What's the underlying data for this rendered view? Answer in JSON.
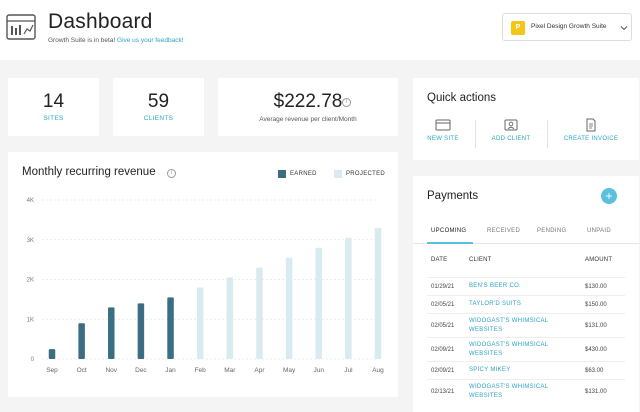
{
  "header": {
    "title": "Dashboard",
    "beta_text": "Growth Suite is in beta!",
    "feedback_link": "Give us your feedback!",
    "site": {
      "logo_letter": "P",
      "name": "Pixel Design Growth Suite"
    }
  },
  "stats": {
    "sites": {
      "value": "14",
      "label": "SITES"
    },
    "clients": {
      "value": "59",
      "label": "CLIENTS"
    },
    "revenue": {
      "value": "$222.78",
      "label": "Average revenue per client/Month"
    }
  },
  "quick_actions": {
    "title": "Quick actions",
    "items": [
      {
        "label": "NEW SITE",
        "icon": "browser-window-icon"
      },
      {
        "label": "ADD CLIENT",
        "icon": "id-card-icon"
      },
      {
        "label": "CREATE INVOICE",
        "icon": "document-icon"
      }
    ]
  },
  "payments": {
    "title": "Payments",
    "add_label": "+",
    "tabs": [
      "UPCOMING",
      "RECEIVED",
      "PENDING",
      "UNPAID"
    ],
    "active_tab": "UPCOMING",
    "columns": [
      "DATE",
      "CLIENT",
      "AMOUNT"
    ],
    "rows": [
      {
        "date": "01/29/21",
        "client": "BEN'S BEER CO.",
        "amount": "$130.00"
      },
      {
        "date": "02/05/21",
        "client": "TAYLOR'D SUITS",
        "amount": "$150.00"
      },
      {
        "date": "02/05/21",
        "client": "WIDOGAST'S WHIMSICAL WEBSITES",
        "amount": "$131.00"
      },
      {
        "date": "02/09/21",
        "client": "WIDOGAST'S WHIMSICAL WEBSITES",
        "amount": "$430.00"
      },
      {
        "date": "02/09/21",
        "client": "SPICY MIKEY",
        "amount": "$63.00"
      },
      {
        "date": "02/13/21",
        "client": "WIDOGAST'S WHIMSICAL WEBSITES",
        "amount": "$131.00"
      }
    ]
  },
  "colors": {
    "accent": "#2ea3c9",
    "earned": "#3b6e82",
    "projected": "#d7ebf0",
    "add_button": "#5bc0de"
  },
  "chart_data": {
    "type": "bar",
    "title": "Monthly recurring revenue",
    "legend": [
      {
        "name": "EARNED"
      },
      {
        "name": "PROJECTED"
      }
    ],
    "categories": [
      "Sep",
      "Oct",
      "Nov",
      "Dec",
      "Jan",
      "Feb",
      "Mar",
      "Apr",
      "May",
      "Jun",
      "Jul",
      "Aug"
    ],
    "series": [
      {
        "name": "EARNED",
        "values": [
          250,
          900,
          1300,
          1400,
          1550,
          null,
          null,
          null,
          null,
          null,
          null,
          null
        ]
      },
      {
        "name": "PROJECTED",
        "values": [
          null,
          null,
          null,
          null,
          null,
          1800,
          2050,
          2300,
          2550,
          2800,
          3050,
          3300
        ]
      }
    ],
    "y_ticks": [
      "0",
      "1K",
      "2K",
      "3K",
      "4K"
    ],
    "ylim": [
      0,
      4000
    ],
    "grid": true
  }
}
